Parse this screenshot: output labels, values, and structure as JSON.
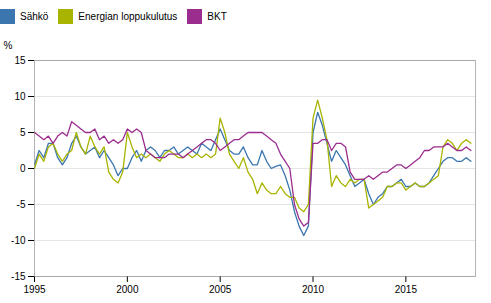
{
  "chart_data": {
    "type": "line",
    "ylabel": "%",
    "xlim": [
      1995,
      2018.75
    ],
    "ylim": [
      -15,
      15
    ],
    "yticks": [
      -15,
      -10,
      -5,
      0,
      5,
      10,
      15
    ],
    "xticks": [
      1995,
      2000,
      2005,
      2010,
      2015
    ],
    "grid": true,
    "legend": "top",
    "x": [
      1995.0,
      1995.25,
      1995.5,
      1995.75,
      1996.0,
      1996.25,
      1996.5,
      1996.75,
      1997.0,
      1997.25,
      1997.5,
      1997.75,
      1998.0,
      1998.25,
      1998.5,
      1998.75,
      1999.0,
      1999.25,
      1999.5,
      1999.75,
      2000.0,
      2000.25,
      2000.5,
      2000.75,
      2001.0,
      2001.25,
      2001.5,
      2001.75,
      2002.0,
      2002.25,
      2002.5,
      2002.75,
      2003.0,
      2003.25,
      2003.5,
      2003.75,
      2004.0,
      2004.25,
      2004.5,
      2004.75,
      2005.0,
      2005.25,
      2005.5,
      2005.75,
      2006.0,
      2006.25,
      2006.5,
      2006.75,
      2007.0,
      2007.25,
      2007.5,
      2007.75,
      2008.0,
      2008.25,
      2008.5,
      2008.75,
      2009.0,
      2009.25,
      2009.5,
      2009.75,
      2010.0,
      2010.25,
      2010.5,
      2010.75,
      2011.0,
      2011.25,
      2011.5,
      2011.75,
      2012.0,
      2012.25,
      2012.5,
      2012.75,
      2013.0,
      2013.25,
      2013.5,
      2013.75,
      2014.0,
      2014.25,
      2014.5,
      2014.75,
      2015.0,
      2015.25,
      2015.5,
      2015.75,
      2016.0,
      2016.25,
      2016.5,
      2016.75,
      2017.0,
      2017.25,
      2017.5,
      2017.75,
      2018.0,
      2018.25,
      2018.5
    ],
    "series": [
      {
        "name": "Sähkö",
        "color": "#3B76AF",
        "values": [
          0.5,
          2.5,
          1.5,
          3.5,
          3.5,
          1.5,
          0.5,
          1.5,
          3.5,
          4.5,
          3.0,
          2.0,
          2.5,
          3.0,
          1.5,
          2.5,
          1.5,
          0.5,
          -1.0,
          0.0,
          0.0,
          1.5,
          2.5,
          1.0,
          2.5,
          3.0,
          2.5,
          1.5,
          2.5,
          2.5,
          3.0,
          2.0,
          2.5,
          3.0,
          2.5,
          2.0,
          3.5,
          3.0,
          2.5,
          4.0,
          5.5,
          4.0,
          2.5,
          2.0,
          2.0,
          3.0,
          1.5,
          0.5,
          0.5,
          2.5,
          1.0,
          0.0,
          0.3,
          0.5,
          -1.0,
          -3.0,
          -6.0,
          -8.0,
          -9.3,
          -8.0,
          5.0,
          7.8,
          6.0,
          3.5,
          1.0,
          2.5,
          1.5,
          0.5,
          -1.0,
          -2.5,
          -2.0,
          -1.5,
          -3.5,
          -5.0,
          -4.0,
          -3.5,
          -2.5,
          -2.5,
          -2.0,
          -1.5,
          -2.5,
          -2.5,
          -2.0,
          -2.5,
          -2.5,
          -2.0,
          -1.0,
          0.0,
          1.0,
          1.5,
          1.5,
          1.0,
          1.0,
          1.5,
          1.0
        ]
      },
      {
        "name": "Energian loppukulutus",
        "color": "#A8B400",
        "values": [
          0.0,
          2.0,
          1.0,
          3.0,
          3.5,
          2.0,
          1.0,
          2.0,
          2.5,
          5.0,
          3.0,
          2.0,
          4.5,
          3.0,
          2.0,
          3.0,
          -0.5,
          -1.5,
          -2.0,
          -0.5,
          5.0,
          3.0,
          1.5,
          2.0,
          1.5,
          2.0,
          1.5,
          1.0,
          2.0,
          2.5,
          2.0,
          1.5,
          1.5,
          2.0,
          1.5,
          2.0,
          1.5,
          2.0,
          1.5,
          2.0,
          7.0,
          5.0,
          2.0,
          1.0,
          0.0,
          1.5,
          -0.5,
          -1.5,
          -3.5,
          -2.0,
          -3.0,
          -3.5,
          -3.5,
          -2.5,
          -3.5,
          -4.0,
          -4.0,
          -5.5,
          -6.0,
          -5.0,
          7.0,
          9.5,
          7.0,
          4.0,
          -2.5,
          -1.0,
          -2.0,
          -2.5,
          -1.5,
          -2.0,
          -1.5,
          -1.5,
          -5.5,
          -5.0,
          -4.5,
          -4.0,
          -2.5,
          -2.5,
          -2.0,
          -2.0,
          -3.0,
          -2.5,
          -2.0,
          -2.5,
          -2.5,
          -2.0,
          -1.5,
          -1.0,
          3.0,
          4.0,
          3.5,
          2.5,
          3.5,
          4.0,
          3.5
        ]
      },
      {
        "name": "BKT",
        "color": "#9B2D8E",
        "values": [
          5.0,
          4.5,
          4.0,
          4.5,
          3.5,
          4.5,
          5.0,
          4.5,
          6.5,
          6.0,
          5.5,
          5.0,
          5.0,
          5.5,
          4.0,
          4.5,
          3.5,
          4.0,
          3.5,
          4.0,
          5.5,
          5.0,
          5.5,
          5.0,
          2.5,
          2.0,
          1.5,
          1.5,
          1.5,
          2.0,
          2.0,
          2.0,
          1.5,
          2.0,
          2.5,
          3.0,
          3.5,
          4.0,
          4.0,
          3.5,
          2.5,
          3.0,
          3.5,
          4.0,
          4.0,
          4.5,
          5.0,
          5.0,
          5.0,
          5.0,
          4.5,
          4.0,
          3.5,
          2.0,
          1.0,
          0.0,
          -5.0,
          -7.0,
          -8.0,
          -7.5,
          3.5,
          3.5,
          4.0,
          4.0,
          2.5,
          3.5,
          3.5,
          3.0,
          -0.5,
          -1.5,
          -1.5,
          -1.5,
          -1.0,
          -1.5,
          -1.0,
          -0.5,
          -0.5,
          0.0,
          0.5,
          0.5,
          0.0,
          0.5,
          1.0,
          1.5,
          2.5,
          2.5,
          3.0,
          3.0,
          3.0,
          3.5,
          3.0,
          2.5,
          2.5,
          3.0,
          2.5
        ]
      }
    ]
  }
}
